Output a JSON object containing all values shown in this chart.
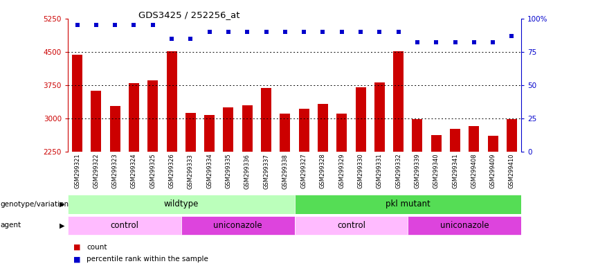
{
  "title": "GDS3425 / 252256_at",
  "samples": [
    "GSM299321",
    "GSM299322",
    "GSM299323",
    "GSM299324",
    "GSM299325",
    "GSM299326",
    "GSM299333",
    "GSM299334",
    "GSM299335",
    "GSM299336",
    "GSM299337",
    "GSM299338",
    "GSM299327",
    "GSM299328",
    "GSM299329",
    "GSM299330",
    "GSM299331",
    "GSM299332",
    "GSM299339",
    "GSM299340",
    "GSM299341",
    "GSM299408",
    "GSM299409",
    "GSM299410"
  ],
  "counts": [
    4430,
    3620,
    3280,
    3790,
    3850,
    4510,
    3120,
    3080,
    3250,
    3290,
    3680,
    3100,
    3220,
    3320,
    3110,
    3700,
    3810,
    4510,
    2980,
    2620,
    2770,
    2830,
    2600,
    2980
  ],
  "percentile_ranks": [
    95,
    95,
    95,
    95,
    95,
    85,
    85,
    90,
    90,
    90,
    90,
    90,
    90,
    90,
    90,
    90,
    90,
    90,
    82,
    82,
    82,
    82,
    82,
    87
  ],
  "bar_color": "#cc0000",
  "dot_color": "#0000cc",
  "ylim_left": [
    2250,
    5250
  ],
  "yticks_left": [
    2250,
    3000,
    3750,
    4500,
    5250
  ],
  "ylim_right": [
    0,
    100
  ],
  "yticks_right": [
    0,
    25,
    50,
    75,
    100
  ],
  "grid_values": [
    3000,
    3750,
    4500
  ],
  "genotype_groups": [
    {
      "label": "wildtype",
      "start": 0,
      "end": 11,
      "color": "#bbffbb"
    },
    {
      "label": "pkl mutant",
      "start": 12,
      "end": 23,
      "color": "#55dd55"
    }
  ],
  "agent_groups": [
    {
      "label": "control",
      "start": 0,
      "end": 5,
      "color": "#ffbbff"
    },
    {
      "label": "uniconazole",
      "start": 6,
      "end": 11,
      "color": "#dd44dd"
    },
    {
      "label": "control",
      "start": 12,
      "end": 17,
      "color": "#ffbbff"
    },
    {
      "label": "uniconazole",
      "start": 18,
      "end": 23,
      "color": "#dd44dd"
    }
  ],
  "left_label_color": "#cc0000",
  "right_label_color": "#0000cc"
}
